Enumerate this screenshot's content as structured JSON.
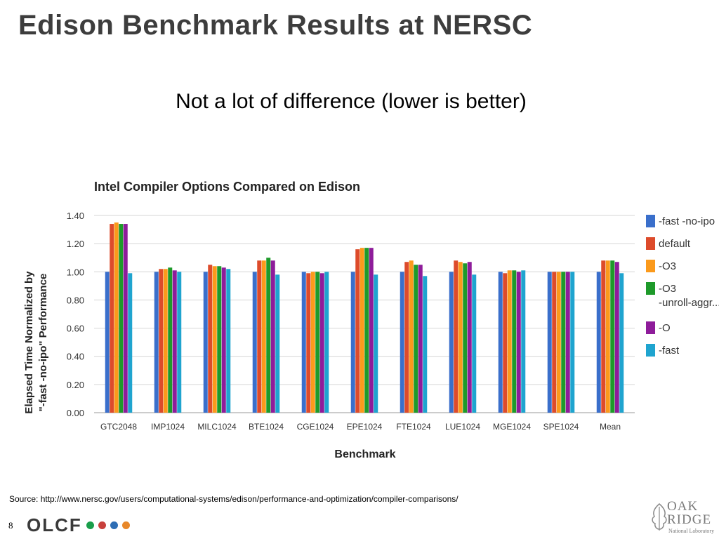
{
  "slide": {
    "title": "Edison Benchmark Results at NERSC",
    "subtitle": "Not a lot of difference (lower is better)",
    "source": "Source: http://www.nersc.gov/users/computational-systems/edison/performance-and-optimization/compiler-comparisons/",
    "page_number": "8",
    "logo_text": "OLCF",
    "logo_dot_colors": [
      "#1a9e4b",
      "#c8403c",
      "#2e6eb5",
      "#e8882a"
    ],
    "partner_logo": {
      "line1": "OAK",
      "line2": "RIDGE",
      "line3": "National Laboratory"
    }
  },
  "chart_data": {
    "type": "bar",
    "title": "Intel Compiler Options Compared on Edison",
    "xlabel": "Benchmark",
    "ylabel_line1": "Elapsed Time Normalized by",
    "ylabel_line2": "\"-fast -no-ipo\" Performance",
    "ylim": [
      0,
      1.4
    ],
    "yticks": [
      "0.00",
      "0.20",
      "0.40",
      "0.60",
      "0.80",
      "1.00",
      "1.20",
      "1.40"
    ],
    "grid": true,
    "legend_position": "right",
    "categories": [
      "GTC2048",
      "IMP1024",
      "MILC1024",
      "BTE1024",
      "CGE1024",
      "EPE1024",
      "FTE1024",
      "LUE1024",
      "MGE1024",
      "SPE1024",
      "Mean"
    ],
    "series": [
      {
        "name": "-fast -no-ipo",
        "color": "#3a6fcb",
        "values": [
          1.0,
          1.0,
          1.0,
          1.0,
          1.0,
          1.0,
          1.0,
          1.0,
          1.0,
          1.0,
          1.0
        ]
      },
      {
        "name": "default",
        "color": "#dd4b2b",
        "values": [
          1.34,
          1.02,
          1.05,
          1.08,
          0.99,
          1.16,
          1.07,
          1.08,
          0.99,
          1.0,
          1.08
        ]
      },
      {
        "name": "-O3",
        "color": "#fb9a1c",
        "values": [
          1.35,
          1.02,
          1.04,
          1.08,
          1.0,
          1.17,
          1.08,
          1.07,
          1.01,
          1.0,
          1.08
        ]
      },
      {
        "name": "-O3 -unroll-aggr...",
        "color": "#1e9a2a",
        "values": [
          1.34,
          1.03,
          1.04,
          1.1,
          1.0,
          1.17,
          1.05,
          1.06,
          1.01,
          1.0,
          1.08
        ]
      },
      {
        "name": "-O",
        "color": "#8e1c9a",
        "values": [
          1.34,
          1.01,
          1.03,
          1.08,
          0.99,
          1.17,
          1.05,
          1.07,
          1.0,
          1.0,
          1.07
        ]
      },
      {
        "name": "-fast",
        "color": "#1fa4cf",
        "values": [
          0.99,
          1.0,
          1.02,
          0.98,
          1.0,
          0.98,
          0.97,
          0.98,
          1.01,
          1.0,
          0.99
        ]
      }
    ]
  }
}
